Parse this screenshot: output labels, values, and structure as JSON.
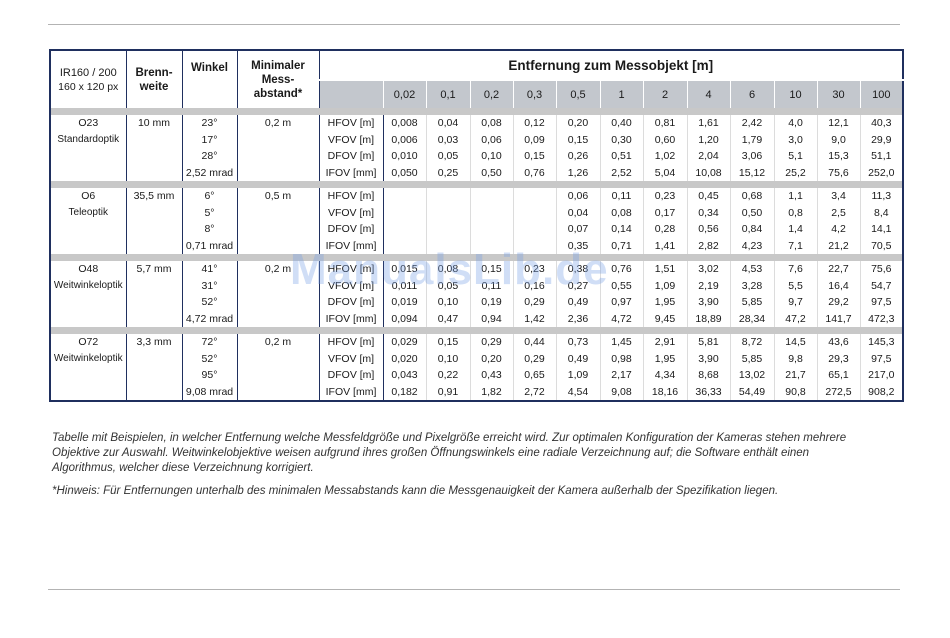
{
  "header": {
    "model": "IR160 / 200",
    "resolution": "160 x 120 px",
    "brennweite": "Brenn-\nweite",
    "winkel": "Winkel",
    "min_abstand": "Minimaler\nMess-\nabstand*",
    "entfernung": "Entfernung zum Messobjekt [m]"
  },
  "distances": [
    "0,02",
    "0,1",
    "0,2",
    "0,3",
    "0,5",
    "1",
    "2",
    "4",
    "6",
    "10",
    "30",
    "100"
  ],
  "groups": [
    {
      "name": "O23",
      "optic": "Standardoptik",
      "focal": "10 mm",
      "angles": [
        "23°",
        "17°",
        "28°",
        "2,52 mrad"
      ],
      "min_dist": "0,2 m",
      "labels": [
        "HFOV [m]",
        "VFOV [m]",
        "DFOV [m]",
        "IFOV [mm]"
      ],
      "rows": [
        [
          "0,008",
          "0,04",
          "0,08",
          "0,12",
          "0,20",
          "0,40",
          "0,81",
          "1,61",
          "2,42",
          "4,0",
          "12,1",
          "40,3"
        ],
        [
          "0,006",
          "0,03",
          "0,06",
          "0,09",
          "0,15",
          "0,30",
          "0,60",
          "1,20",
          "1,79",
          "3,0",
          "9,0",
          "29,9"
        ],
        [
          "0,010",
          "0,05",
          "0,10",
          "0,15",
          "0,26",
          "0,51",
          "1,02",
          "2,04",
          "3,06",
          "5,1",
          "15,3",
          "51,1"
        ],
        [
          "0,050",
          "0,25",
          "0,50",
          "0,76",
          "1,26",
          "2,52",
          "5,04",
          "10,08",
          "15,12",
          "25,2",
          "75,6",
          "252,0"
        ]
      ]
    },
    {
      "name": "O6",
      "optic": "Teleoptik",
      "focal": "35,5 mm",
      "angles": [
        "6°",
        "5°",
        "8°",
        "0,71 mrad"
      ],
      "min_dist": "0,5 m",
      "labels": [
        "HFOV [m]",
        "VFOV [m]",
        "DFOV [m]",
        "IFOV [mm]"
      ],
      "rows": [
        [
          "",
          "",
          "",
          "",
          "0,06",
          "0,11",
          "0,23",
          "0,45",
          "0,68",
          "1,1",
          "3,4",
          "11,3"
        ],
        [
          "",
          "",
          "",
          "",
          "0,04",
          "0,08",
          "0,17",
          "0,34",
          "0,50",
          "0,8",
          "2,5",
          "8,4"
        ],
        [
          "",
          "",
          "",
          "",
          "0,07",
          "0,14",
          "0,28",
          "0,56",
          "0,84",
          "1,4",
          "4,2",
          "14,1"
        ],
        [
          "",
          "",
          "",
          "",
          "0,35",
          "0,71",
          "1,41",
          "2,82",
          "4,23",
          "7,1",
          "21,2",
          "70,5"
        ]
      ]
    },
    {
      "name": "O48",
      "optic": "Weitwinkeloptik",
      "focal": "5,7 mm",
      "angles": [
        "41°",
        "31°",
        "52°",
        "4,72 mrad"
      ],
      "min_dist": "0,2 m",
      "labels": [
        "HFOV [m]",
        "VFOV [m]",
        "DFOV [m]",
        "IFOV [mm]"
      ],
      "rows": [
        [
          "0,015",
          "0,08",
          "0,15",
          "0,23",
          "0,38",
          "0,76",
          "1,51",
          "3,02",
          "4,53",
          "7,6",
          "22,7",
          "75,6"
        ],
        [
          "0,011",
          "0,05",
          "0,11",
          "0,16",
          "0,27",
          "0,55",
          "1,09",
          "2,19",
          "3,28",
          "5,5",
          "16,4",
          "54,7"
        ],
        [
          "0,019",
          "0,10",
          "0,19",
          "0,29",
          "0,49",
          "0,97",
          "1,95",
          "3,90",
          "5,85",
          "9,7",
          "29,2",
          "97,5"
        ],
        [
          "0,094",
          "0,47",
          "0,94",
          "1,42",
          "2,36",
          "4,72",
          "9,45",
          "18,89",
          "28,34",
          "47,2",
          "141,7",
          "472,3"
        ]
      ]
    },
    {
      "name": "O72",
      "optic": "Weitwinkeloptik",
      "focal": "3,3 mm",
      "angles": [
        "72°",
        "52°",
        "95°",
        "9,08 mrad"
      ],
      "min_dist": "0,2 m",
      "labels": [
        "HFOV [m]",
        "VFOV [m]",
        "DFOV [m]",
        "IFOV [mm]"
      ],
      "rows": [
        [
          "0,029",
          "0,15",
          "0,29",
          "0,44",
          "0,73",
          "1,45",
          "2,91",
          "5,81",
          "8,72",
          "14,5",
          "43,6",
          "145,3"
        ],
        [
          "0,020",
          "0,10",
          "0,20",
          "0,29",
          "0,49",
          "0,98",
          "1,95",
          "3,90",
          "5,85",
          "9,8",
          "29,3",
          "97,5"
        ],
        [
          "0,043",
          "0,22",
          "0,43",
          "0,65",
          "1,09",
          "2,17",
          "4,34",
          "8,68",
          "13,02",
          "21,7",
          "65,1",
          "217,0"
        ],
        [
          "0,182",
          "0,91",
          "1,82",
          "2,72",
          "4,54",
          "9,08",
          "18,16",
          "36,33",
          "54,49",
          "90,8",
          "272,5",
          "908,2"
        ]
      ]
    }
  ],
  "note1": "Tabelle mit Beispielen, in welcher Entfernung welche Messfeldgröße und Pixelgröße erreicht wird. Zur optimalen Konfiguration der Kameras stehen mehrere Objektive zur Auswahl. Weitwinkelobjektive weisen aufgrund ihres großen Öffnungswinkels eine radiale Verzeichnung auf; die Software enthält einen Algorithmus, welcher diese Verzeichnung korrigiert.",
  "note2": "*Hinweis: Für Entfernungen unterhalb des minimalen Messabstands kann die Messgenauigkeit der Kamera außerhalb der Spezifikation liegen.",
  "watermark": "ManualsLib.de"
}
